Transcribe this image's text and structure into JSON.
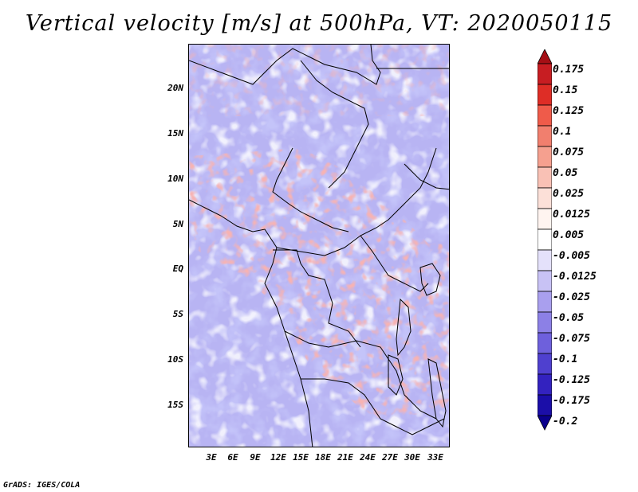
{
  "title": "Vertical velocity [m/s] at 500hPa, VT: 2020050115",
  "map": {
    "lat_labels": [
      "20N",
      "15N",
      "10N",
      "5N",
      "EQ",
      "5S",
      "10S",
      "15S"
    ],
    "lon_labels": [
      "3E",
      "6E",
      "9E",
      "12E",
      "15E",
      "18E",
      "21E",
      "24E",
      "27E",
      "30E",
      "33E"
    ]
  },
  "colorbar": {
    "labels": [
      "0.175",
      "0.15",
      "0.125",
      "0.1",
      "0.075",
      "0.05",
      "0.025",
      "0.0125",
      "0.005",
      "-0.005",
      "-0.0125",
      "-0.025",
      "-0.05",
      "-0.075",
      "-0.1",
      "-0.125",
      "-0.175",
      "-0.2"
    ],
    "colors": [
      "#a50f15",
      "#c71d22",
      "#de2d26",
      "#ef5b4a",
      "#f17f6e",
      "#f5a08f",
      "#f9c1b5",
      "#fce0d8",
      "#fff4f0",
      "#ffffff",
      "#e4e1fb",
      "#c8c2f5",
      "#a99fee",
      "#8c80e6",
      "#6e60dc",
      "#4f40cf",
      "#3322bf",
      "#1b0ea8",
      "#0a008c"
    ]
  },
  "credit": "GrADS: IGES/COLA"
}
